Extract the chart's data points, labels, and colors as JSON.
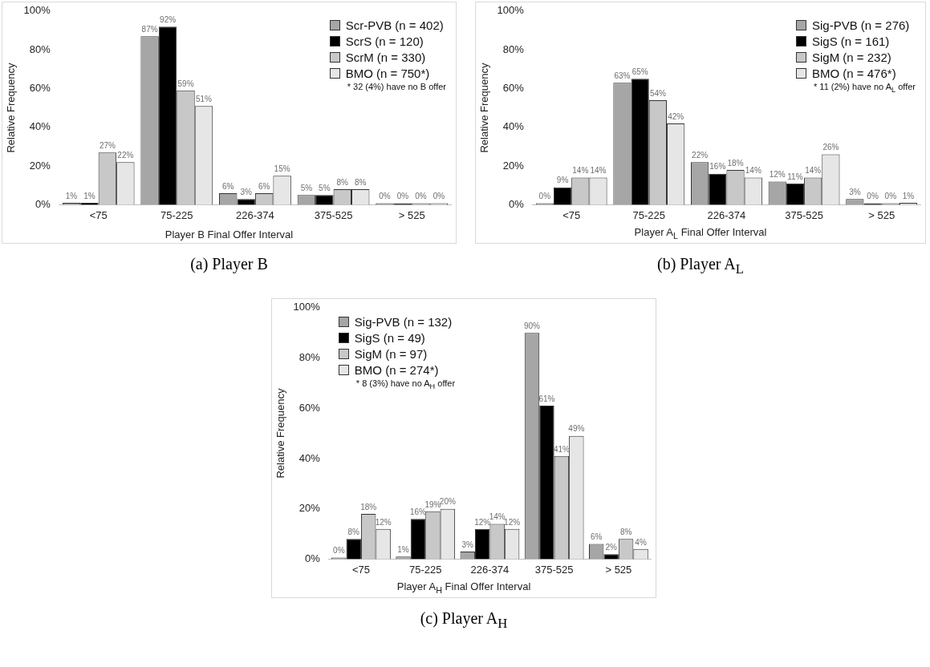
{
  "chart_data": [
    {
      "type": "bar",
      "title": "(a) Player B",
      "xlabel": "Player B Final Offer Interval",
      "ylabel": "Relative Frequency",
      "categories": [
        "<75",
        "75-225",
        "226-374",
        "375-525",
        "> 525"
      ],
      "ylim": [
        0,
        100
      ],
      "yticks": [
        {
          "value": 0,
          "label": "0%"
        },
        {
          "value": 20,
          "label": "20%"
        },
        {
          "value": 40,
          "label": "40%"
        },
        {
          "value": 60,
          "label": "60%"
        },
        {
          "value": 80,
          "label": "80%"
        },
        {
          "value": 100,
          "label": "100%"
        }
      ],
      "legend": "top right",
      "annotations": [
        "* 32 (4%) have no B offer"
      ],
      "series": [
        {
          "name": "Scr-PVB (n = 402)",
          "color": "#a6a6a6",
          "values": [
            1,
            87,
            6,
            5,
            0
          ],
          "value_labels": [
            "1%",
            "87%",
            "6%",
            "5%",
            "0%"
          ]
        },
        {
          "name": "ScrS (n = 120)",
          "color": "#000000",
          "values": [
            1,
            92,
            3,
            5,
            0
          ],
          "value_labels": [
            "1%",
            "92%",
            "3%",
            "5%",
            "0%"
          ]
        },
        {
          "name": "ScrM (n = 330)",
          "color": "#c8c8c8",
          "values": [
            27,
            59,
            6,
            8,
            0
          ],
          "value_labels": [
            "27%",
            "59%",
            "6%",
            "8%",
            "0%"
          ]
        },
        {
          "name": "BMO (n = 750*)",
          "color": "#e6e6e6",
          "values": [
            22,
            51,
            15,
            8,
            0
          ],
          "value_labels": [
            "22%",
            "51%",
            "15%",
            "8%",
            "0%"
          ]
        }
      ]
    },
    {
      "type": "bar",
      "title": "(b) Player A$_{L}$",
      "xlabel": "Player A$_{L}$ Final Offer Interval",
      "ylabel": "Relative Frequency",
      "categories": [
        "<75",
        "75-225",
        "226-374",
        "375-525",
        "> 525"
      ],
      "ylim": [
        0,
        100
      ],
      "yticks": [
        {
          "value": 0,
          "label": "0%"
        },
        {
          "value": 20,
          "label": "20%"
        },
        {
          "value": 40,
          "label": "40%"
        },
        {
          "value": 60,
          "label": "60%"
        },
        {
          "value": 80,
          "label": "80%"
        },
        {
          "value": 100,
          "label": "100%"
        }
      ],
      "legend": "top right",
      "annotations": [
        "* 11 (2%) have no A$_{L}$ offer"
      ],
      "series": [
        {
          "name": "Sig-PVB (n = 276)",
          "color": "#a6a6a6",
          "values": [
            0,
            63,
            22,
            12,
            3
          ],
          "value_labels": [
            "0%",
            "63%",
            "22%",
            "12%",
            "3%"
          ]
        },
        {
          "name": "SigS (n = 161)",
          "color": "#000000",
          "values": [
            9,
            65,
            16,
            11,
            0
          ],
          "value_labels": [
            "9%",
            "65%",
            "16%",
            "11%",
            "0%"
          ]
        },
        {
          "name": "SigM (n = 232)",
          "color": "#c8c8c8",
          "values": [
            14,
            54,
            18,
            14,
            0
          ],
          "value_labels": [
            "14%",
            "54%",
            "18%",
            "14%",
            "0%"
          ]
        },
        {
          "name": "BMO (n = 476*)",
          "color": "#e6e6e6",
          "values": [
            14,
            42,
            14,
            26,
            1
          ],
          "value_labels": [
            "14%",
            "42%",
            "14%",
            "26%",
            "1%"
          ]
        }
      ]
    },
    {
      "type": "bar",
      "title": "(c) Player A$_{H}$",
      "xlabel": "Player A$_{H}$ Final Offer Interval",
      "ylabel": "Relative Frequency",
      "categories": [
        "<75",
        "75-225",
        "226-374",
        "375-525",
        "> 525"
      ],
      "ylim": [
        0,
        100
      ],
      "yticks": [
        {
          "value": 0,
          "label": "0%"
        },
        {
          "value": 20,
          "label": "20%"
        },
        {
          "value": 40,
          "label": "40%"
        },
        {
          "value": 60,
          "label": "60%"
        },
        {
          "value": 80,
          "label": "80%"
        },
        {
          "value": 100,
          "label": "100%"
        }
      ],
      "legend": "top left",
      "annotations": [
        "* 8 (3%) have no A$_{H}$ offer"
      ],
      "series": [
        {
          "name": "Sig-PVB (n = 132)",
          "color": "#a6a6a6",
          "values": [
            0,
            1,
            3,
            90,
            6
          ],
          "value_labels": [
            "0%",
            "1%",
            "3%",
            "90%",
            "6%"
          ]
        },
        {
          "name": "SigS (n = 49)",
          "color": "#000000",
          "values": [
            8,
            16,
            12,
            61,
            2
          ],
          "value_labels": [
            "8%",
            "16%",
            "12%",
            "61%",
            "2%"
          ]
        },
        {
          "name": "SigM (n = 97)",
          "color": "#c8c8c8",
          "values": [
            18,
            19,
            14,
            41,
            8
          ],
          "value_labels": [
            "18%",
            "19%",
            "14%",
            "41%",
            "8%"
          ]
        },
        {
          "name": "BMO (n = 274*)",
          "color": "#e6e6e6",
          "values": [
            12,
            20,
            12,
            49,
            4
          ],
          "value_labels": [
            "12%",
            "20%",
            "12%",
            "49%",
            "4%"
          ]
        }
      ]
    }
  ]
}
